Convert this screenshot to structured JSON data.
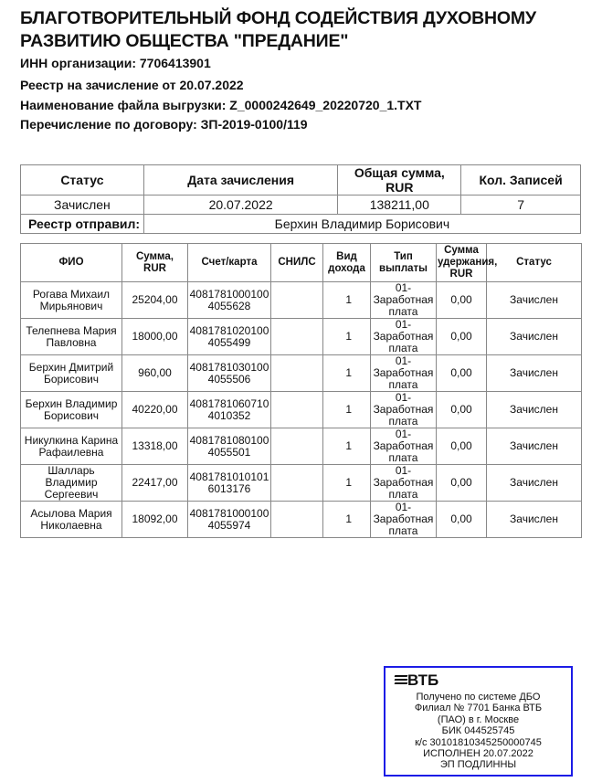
{
  "header": {
    "title": "БЛАГОТВОРИТЕЛЬНЫЙ ФОНД СОДЕЙСТВИЯ ДУХОВНОМУ РАЗВИТИЮ ОБЩЕСТВА \"ПРЕДАНИЕ\"",
    "inn": "ИНН организации: 7706413901",
    "registry": "Реестр на зачисление от 20.07.2022",
    "file": "Наименование файла выгрузки: Z_0000242649_20220720_1.TXT",
    "contract": "Перечисление по договору: ЗП-2019-0100/119"
  },
  "summary": {
    "headers": [
      "Статус",
      "Дата зачисления",
      "Общая сумма, RUR",
      "Кол. Записей"
    ],
    "values": [
      "Зачислен",
      "20.07.2022",
      "138211,00",
      "7"
    ],
    "sender_label": "Реестр отправил:",
    "sender": "Берхин Владимир Борисович"
  },
  "registry": {
    "headers": [
      "ФИО",
      "Сумма, RUR",
      "Счет/карта",
      "СНИЛС",
      "Вид дохода",
      "Тип выплаты",
      "Сумма удержания, RUR",
      "Статус"
    ],
    "rows": [
      {
        "name": "Рогава Михаил Мирьянович",
        "sum": "25204,00",
        "account": "40817810001004055628",
        "snils": "",
        "income": "1",
        "type": "01-Заработная плата",
        "withheld": "0,00",
        "status": "Зачислен"
      },
      {
        "name": "Телепнева Мария Павловна",
        "sum": "18000,00",
        "account": "40817810201004055499",
        "snils": "",
        "income": "1",
        "type": "01-Заработная плата",
        "withheld": "0,00",
        "status": "Зачислен"
      },
      {
        "name": "Берхин Дмитрий Борисович",
        "sum": "960,00",
        "account": "40817810301004055506",
        "snils": "",
        "income": "1",
        "type": "01-Заработная плата",
        "withheld": "0,00",
        "status": "Зачислен"
      },
      {
        "name": "Берхин Владимир Борисович",
        "sum": "40220,00",
        "account": "40817810607104010352",
        "snils": "",
        "income": "1",
        "type": "01-Заработная плата",
        "withheld": "0,00",
        "status": "Зачислен"
      },
      {
        "name": "Никулкина Карина Рафаилевна",
        "sum": "13318,00",
        "account": "40817810801004055501",
        "snils": "",
        "income": "1",
        "type": "01-Заработная плата",
        "withheld": "0,00",
        "status": "Зачислен"
      },
      {
        "name": "Шалларь Владимир Сергеевич",
        "sum": "22417,00",
        "account": "40817810101016013176",
        "snils": "",
        "income": "1",
        "type": "01-Заработная плата",
        "withheld": "0,00",
        "status": "Зачислен"
      },
      {
        "name": "Асылова Мария Николаевна",
        "sum": "18092,00",
        "account": "40817810001004055974",
        "snils": "",
        "income": "1",
        "type": "01-Заработная плата",
        "withheld": "0,00",
        "status": "Зачислен"
      }
    ]
  },
  "stamp": {
    "logo": "ВТБ",
    "border_color": "#1c1ce6",
    "lines": [
      "Получено по системе ДБО",
      "Филиал № 7701 Банка ВТБ",
      "(ПАО) в г. Москве",
      "БИК 044525745",
      "к/с 30101810345250000745",
      "ИСПОЛНЕН 20.07.2022",
      "ЭП ПОДЛИННЫ"
    ]
  }
}
